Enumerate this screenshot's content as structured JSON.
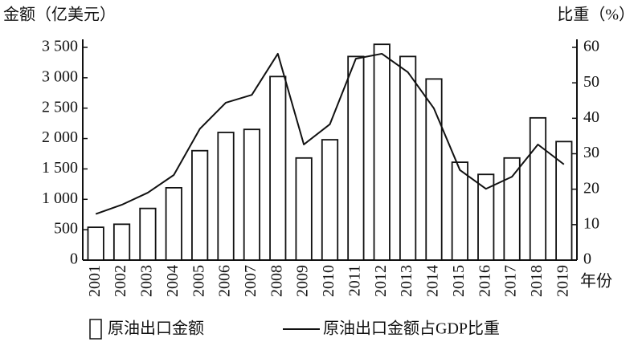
{
  "chart_data": {
    "type": "bar",
    "y_label": "金额（亿美元）",
    "y2_label": "比重（%）",
    "x_label": "年份",
    "categories": [
      "2001",
      "2002",
      "2003",
      "2004",
      "2005",
      "2006",
      "2007",
      "2008",
      "2009",
      "2010",
      "2011",
      "2012",
      "2013",
      "2014",
      "2015",
      "2016",
      "2017",
      "2018",
      "2019"
    ],
    "series": [
      {
        "name": "原油出口金额",
        "type": "bar",
        "color": "#ffffff",
        "values": [
          540,
          590,
          850,
          1190,
          1800,
          2100,
          2150,
          3020,
          1680,
          1980,
          3350,
          3550,
          3350,
          2980,
          1610,
          1410,
          1680,
          2340,
          1950
        ]
      },
      {
        "name": "原油出口金额占GDP比重",
        "type": "line",
        "axis": "y2",
        "color": "#111111",
        "values": [
          13,
          15.6,
          19,
          24,
          37,
          44.4,
          46.6,
          58.2,
          32.6,
          38.3,
          56.8,
          58.2,
          53,
          42.8,
          25.4,
          20.1,
          23.5,
          32.6,
          27
        ]
      }
    ],
    "ylim": [
      0,
      3500
    ],
    "yticks": [
      0,
      500,
      {
        "value": 1000,
        "label": "1 000"
      },
      {
        "value": 1500,
        "label": "1 500"
      },
      {
        "value": 2000,
        "label": "2 000"
      },
      {
        "value": 2500,
        "label": "2 500"
      },
      {
        "value": 3000,
        "label": "3 000"
      },
      {
        "value": 3500,
        "label": "3 500"
      }
    ],
    "y2lim": [
      0,
      60
    ],
    "y2ticks": [
      0,
      10,
      20,
      30,
      40,
      50,
      60
    ]
  }
}
